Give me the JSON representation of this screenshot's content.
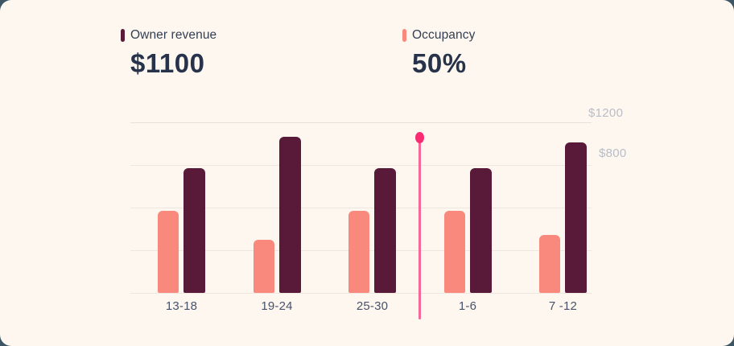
{
  "theme": {
    "outside_background": "#3E5664",
    "card_background": "#FDF7F0",
    "revenue_color": "#581A38",
    "occupancy_color": "#F8897C",
    "marker_line_color": "#F4699A",
    "marker_dot_color": "#F92C72",
    "heading_text_color": "#27334A",
    "label_text_color": "#333F52",
    "category_label_color": "#47526A",
    "axis_label_color": "#B9BDC7",
    "gridline_color": "#EDE7DF"
  },
  "header": {
    "metrics": [
      {
        "label": "Owner revenue",
        "value": "$1100",
        "swatch_color": "#581A38"
      },
      {
        "label": "Occupancy",
        "value": "50%",
        "swatch_color": "#F8897C"
      }
    ]
  },
  "chart": {
    "y_axis_labels": [
      "$1200",
      "$800"
    ]
  },
  "chart_data": {
    "type": "bar",
    "title": "",
    "categories": [
      "13-18",
      "19-24",
      "25-30",
      "1-6",
      "7 -12"
    ],
    "series": [
      {
        "name": "Owner revenue",
        "unit": "USD",
        "color": "#581A38",
        "values": [
          880,
          1100,
          880,
          880,
          1060
        ]
      },
      {
        "name": "Occupancy",
        "unit": "percent",
        "color": "#F8897C",
        "values": [
          48,
          31,
          48,
          48,
          34
        ]
      }
    ],
    "xlabel": "",
    "ylabel": "USD",
    "ylim": [
      0,
      1200
    ],
    "occupancy_scale_lim": [
      0,
      100
    ],
    "y_ticks_shown": [
      "$1200",
      "$800"
    ],
    "grid": true,
    "legend_position": "top",
    "marker": {
      "description": "vertical hover indicator line with dot, between categories 25-30 and 1-6",
      "line_color": "#F4699A",
      "dot_color": "#F92C72"
    }
  }
}
